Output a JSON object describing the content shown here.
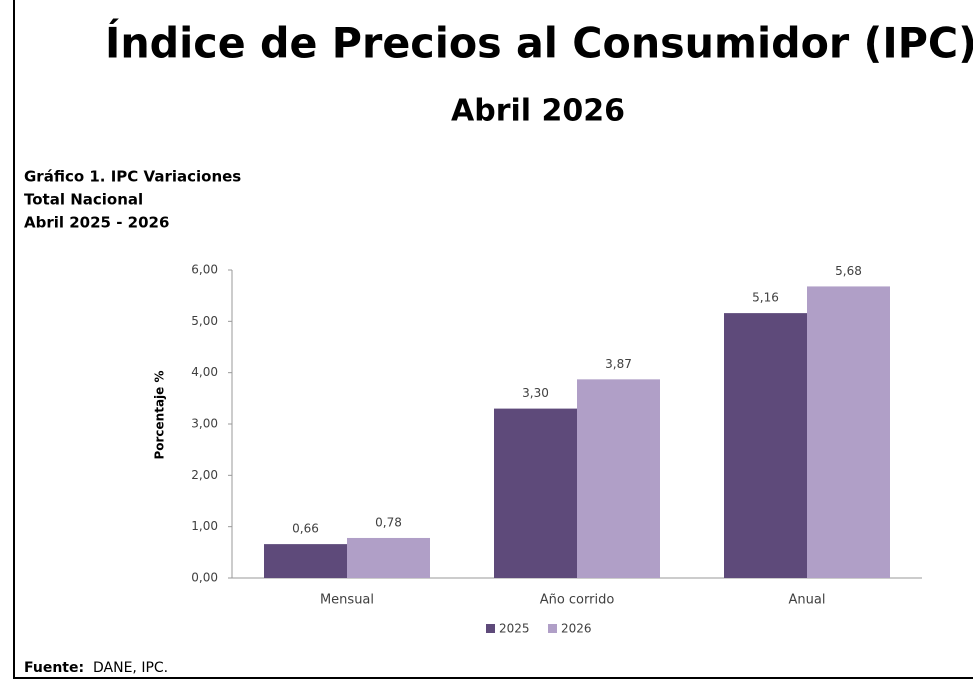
{
  "chart_data": {
    "type": "bar",
    "title": "Índice de Precios al Consumidor (IPC)",
    "subtitle": "Abril 2026",
    "heading": [
      "Gráfico 1. IPC Variaciones",
      "Total Nacional",
      "Abril 2025 - 2026"
    ],
    "y_label": "Porcentaje %",
    "categories": [
      "Mensual",
      "Año corrido",
      "Anual"
    ],
    "series": [
      {
        "name": "2025",
        "color": "#5e4a7a",
        "values": [
          0.66,
          3.3,
          5.16
        ],
        "value_labels": [
          "0,66",
          "3,30",
          "5,16"
        ]
      },
      {
        "name": "2026",
        "color": "#b09fc7",
        "values": [
          0.78,
          3.87,
          5.68
        ],
        "value_labels": [
          "0,78",
          "3,87",
          "5,68"
        ]
      }
    ],
    "ylim": [
      0,
      6
    ],
    "yticks": [
      {
        "value": 0,
        "label": "0,00"
      },
      {
        "value": 1,
        "label": "1,00"
      },
      {
        "value": 2,
        "label": "2,00"
      },
      {
        "value": 3,
        "label": "3,00"
      },
      {
        "value": 4,
        "label": "4,00"
      },
      {
        "value": 5,
        "label": "5,00"
      },
      {
        "value": 6,
        "label": "6,00"
      }
    ],
    "grid": false,
    "legend": "bottom",
    "source_label": "Fuente:",
    "source": "DANE, IPC."
  }
}
